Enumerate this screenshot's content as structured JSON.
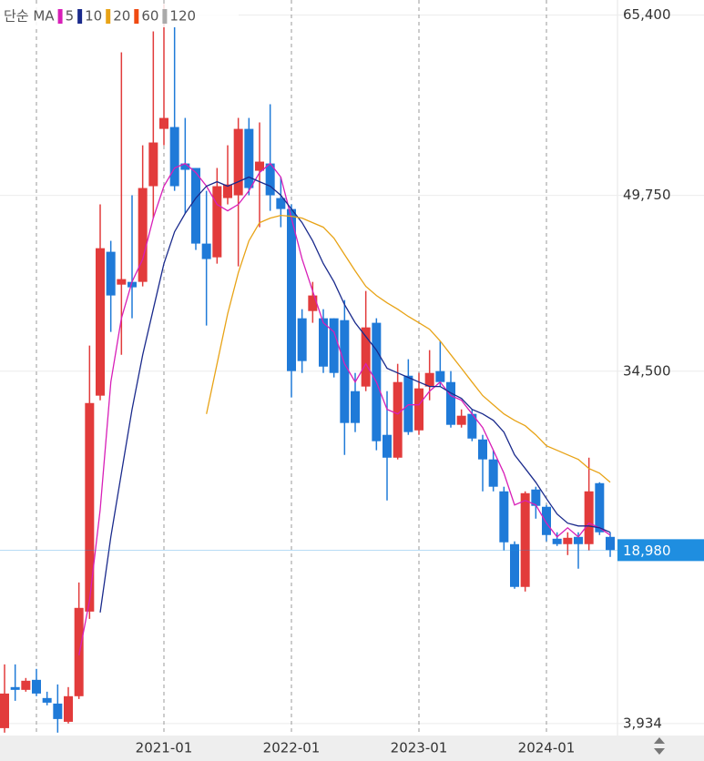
{
  "chart_data": {
    "type": "candlestick",
    "legend_title": "단순 MA",
    "categories": [
      null,
      null,
      null,
      null,
      null,
      null,
      null,
      null,
      null,
      null,
      null,
      null,
      null,
      null,
      null,
      "2021-01",
      null,
      null,
      null,
      null,
      null,
      null,
      null,
      null,
      null,
      null,
      null,
      "2022-01",
      null,
      null,
      null,
      null,
      null,
      null,
      null,
      null,
      null,
      null,
      null,
      "2023-01",
      null,
      null,
      null,
      null,
      null,
      null,
      null,
      null,
      null,
      null,
      null,
      "2024-01",
      null,
      null,
      null,
      null,
      null,
      null
    ],
    "ohlc": {
      "up_color": "#e23b3b",
      "down_color": "#1f7ad8",
      "open": [
        3540,
        7100,
        6860,
        7730,
        6150,
        5670,
        4090,
        6310,
        13650,
        32380,
        44860,
        42010,
        42250,
        42250,
        50550,
        55520,
        55680,
        52520,
        52130,
        45570,
        44380,
        49520,
        49760,
        55520,
        51890,
        52520,
        49520,
        48570,
        39090,
        39720,
        39090,
        39090,
        38930,
        32770,
        33170,
        38700,
        28980,
        27000,
        34110,
        29370,
        33170,
        34510,
        33560,
        29850,
        30800,
        28580,
        26850,
        24080,
        19500,
        15790,
        24240,
        22740,
        19970,
        19500,
        20130,
        19500,
        24790,
        20130
      ],
      "high": [
        9070,
        9070,
        7890,
        8680,
        6700,
        7330,
        7100,
        16180,
        36720,
        48970,
        45810,
        62160,
        49760,
        54100,
        63980,
        66350,
        64370,
        56470,
        52130,
        50150,
        52130,
        54100,
        56470,
        56470,
        56080,
        57660,
        51340,
        48970,
        39880,
        42250,
        39880,
        39090,
        40670,
        34350,
        41460,
        39090,
        32770,
        35140,
        35540,
        34350,
        36330,
        37120,
        34510,
        31190,
        31190,
        28980,
        27640,
        24480,
        19740,
        24080,
        24480,
        22900,
        20530,
        20530,
        20530,
        27000,
        24870,
        20530
      ],
      "low": [
        3150,
        5910,
        6700,
        6310,
        5520,
        3150,
        3940,
        6070,
        13020,
        31980,
        37910,
        35930,
        39090,
        41860,
        47780,
        54100,
        50150,
        48180,
        45020,
        38460,
        43830,
        48970,
        43590,
        49760,
        46990,
        48410,
        46990,
        32220,
        34350,
        38700,
        34350,
        33960,
        27240,
        29220,
        32770,
        27640,
        23290,
        26850,
        28980,
        28980,
        31980,
        33170,
        29610,
        29610,
        28430,
        24080,
        24080,
        18950,
        15630,
        15390,
        21710,
        19740,
        19340,
        18550,
        17370,
        18950,
        20290,
        18390
      ],
      "close": [
        6540,
        6860,
        7650,
        6540,
        5750,
        4330,
        6310,
        13970,
        31740,
        45170,
        41070,
        42490,
        41780,
        50390,
        54340,
        56470,
        50550,
        51970,
        45570,
        44230,
        50550,
        50700,
        55520,
        50390,
        52680,
        49760,
        48570,
        34510,
        35380,
        41070,
        34900,
        34350,
        30010,
        30010,
        38300,
        28430,
        27000,
        33560,
        29220,
        33010,
        34350,
        33560,
        29850,
        30640,
        28660,
        26850,
        24480,
        19660,
        15790,
        23920,
        22820,
        20290,
        19500,
        20050,
        19500,
        24080,
        20530,
        18980
      ]
    },
    "series": [
      {
        "name": "5",
        "color": "#d81fb8",
        "values": [
          null,
          null,
          null,
          null,
          null,
          null,
          null,
          9860,
          14600,
          22500,
          33560,
          39090,
          42250,
          44230,
          47780,
          50550,
          52130,
          52520,
          51730,
          50550,
          48970,
          48410,
          48970,
          50150,
          51730,
          52520,
          51340,
          47780,
          44230,
          41460,
          38700,
          37910,
          35140,
          33560,
          35140,
          33560,
          31190,
          30800,
          31590,
          31590,
          32770,
          33560,
          32380,
          31980,
          30800,
          29610,
          27640,
          25660,
          22900,
          23290,
          22900,
          21320,
          20130,
          20920,
          20130,
          21320,
          20920,
          20290
        ]
      },
      {
        "name": "10",
        "color": "#1a2a8c",
        "values": [
          null,
          null,
          null,
          null,
          null,
          null,
          null,
          null,
          null,
          13570,
          20130,
          25660,
          31190,
          35930,
          39880,
          43830,
          46600,
          48180,
          49520,
          50550,
          50940,
          50550,
          50940,
          51340,
          50940,
          50550,
          49760,
          48570,
          47390,
          45810,
          43830,
          42250,
          40280,
          38700,
          37510,
          36330,
          34750,
          34350,
          33960,
          33560,
          33170,
          33170,
          32610,
          32140,
          31190,
          30800,
          30240,
          29220,
          27240,
          26060,
          24870,
          23450,
          22110,
          21320,
          21080,
          21080,
          20920,
          20530
        ]
      },
      {
        "name": "20",
        "color": "#e8a316",
        "values": [
          null,
          null,
          null,
          null,
          null,
          null,
          null,
          null,
          null,
          null,
          null,
          null,
          null,
          null,
          null,
          null,
          null,
          null,
          null,
          30800,
          35140,
          39490,
          43040,
          45810,
          47390,
          47780,
          48020,
          47940,
          47780,
          47390,
          46990,
          46040,
          44620,
          43200,
          41860,
          41070,
          40430,
          39880,
          39250,
          38700,
          38140,
          37120,
          35930,
          34750,
          33560,
          32380,
          31590,
          30800,
          30240,
          29770,
          28980,
          28030,
          27640,
          27240,
          26850,
          26060,
          25660,
          24870
        ]
      },
      {
        "name": "60",
        "color": "#f04a12"
      },
      {
        "name": "120",
        "color": "#aaaaaa"
      }
    ],
    "ylim": [
      2900,
      66700
    ],
    "yticks": [
      {
        "value": 65400,
        "label": "65,400"
      },
      {
        "value": 49750,
        "label": "49,750"
      },
      {
        "value": 34500,
        "label": "34,500"
      },
      {
        "value": 3934,
        "label": "3,934"
      }
    ],
    "last_price": {
      "value": 18980,
      "label": "18,980",
      "color": "#1f8ee0"
    },
    "grid": true
  }
}
